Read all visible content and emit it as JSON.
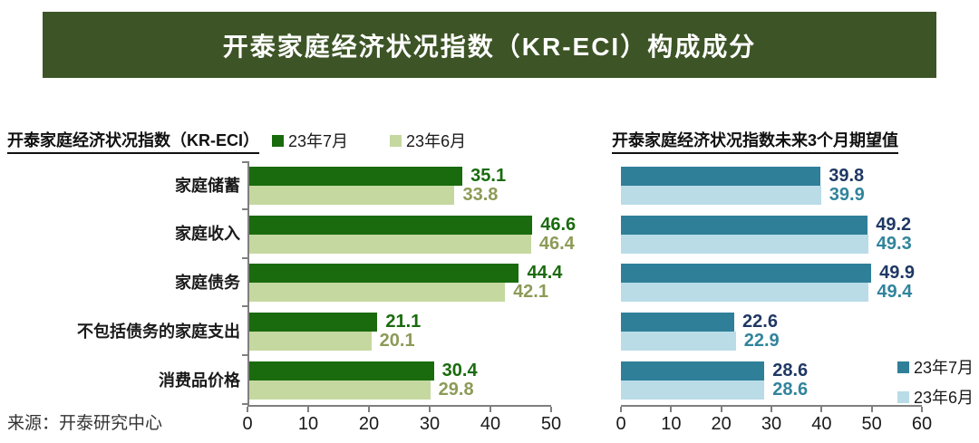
{
  "banner": {
    "title": "开泰家庭经济状况指数（KR-ECI）构成成分"
  },
  "source": "来源：开泰研究中心",
  "colors": {
    "banner_bg": "#3D5426",
    "axis_color": "#7F7F7F",
    "dark_green": "#1A6B0E",
    "light_green": "#C5D8A0",
    "olive_label": "#8C9B57",
    "dark_teal": "#2F7F99",
    "light_blue": "#B9DCE7",
    "navy_label": "#1F3864",
    "teal_label": "#31849B"
  },
  "chart_data": [
    {
      "type": "bar",
      "orientation": "horizontal",
      "title": "开泰家庭经济状况指数（KR-ECI）",
      "categories": [
        "家庭储蓄",
        "家庭收入",
        "家庭债务",
        "不包括债务的家庭支出",
        "消费品价格"
      ],
      "series": [
        {
          "name": "23年7月",
          "color": "#1A6B0E",
          "label_color": "#1A6B0E",
          "values": [
            35.1,
            46.6,
            44.4,
            21.1,
            30.4
          ]
        },
        {
          "name": "23年6月",
          "color": "#C5D8A0",
          "label_color": "#8C9B57",
          "values": [
            33.8,
            46.4,
            42.1,
            20.1,
            29.8
          ]
        }
      ],
      "xlim": [
        0,
        50
      ],
      "x_ticks": [
        0,
        10,
        20,
        30,
        40,
        50
      ],
      "grid": false,
      "y_axis_line": true,
      "show_category_labels": true,
      "legend_position": "top"
    },
    {
      "type": "bar",
      "orientation": "horizontal",
      "title": "开泰家庭经济状况指数未来3个月期望值",
      "categories": [
        "家庭储蓄",
        "家庭收入",
        "家庭债务",
        "不包括债务的家庭支出",
        "消费品价格"
      ],
      "series": [
        {
          "name": "23年7月",
          "color": "#2F7F99",
          "label_color": "#1F3864",
          "values": [
            39.8,
            49.2,
            49.9,
            22.6,
            28.6
          ]
        },
        {
          "name": "23年6月",
          "color": "#B9DCE7",
          "label_color": "#31849B",
          "values": [
            39.9,
            49.3,
            49.4,
            22.9,
            28.6
          ]
        }
      ],
      "xlim": [
        0,
        60
      ],
      "x_ticks": [
        0,
        10,
        20,
        30,
        40,
        50,
        60
      ],
      "grid": false,
      "y_axis_line": false,
      "show_category_labels": false,
      "legend_position": "bottom-right"
    }
  ]
}
